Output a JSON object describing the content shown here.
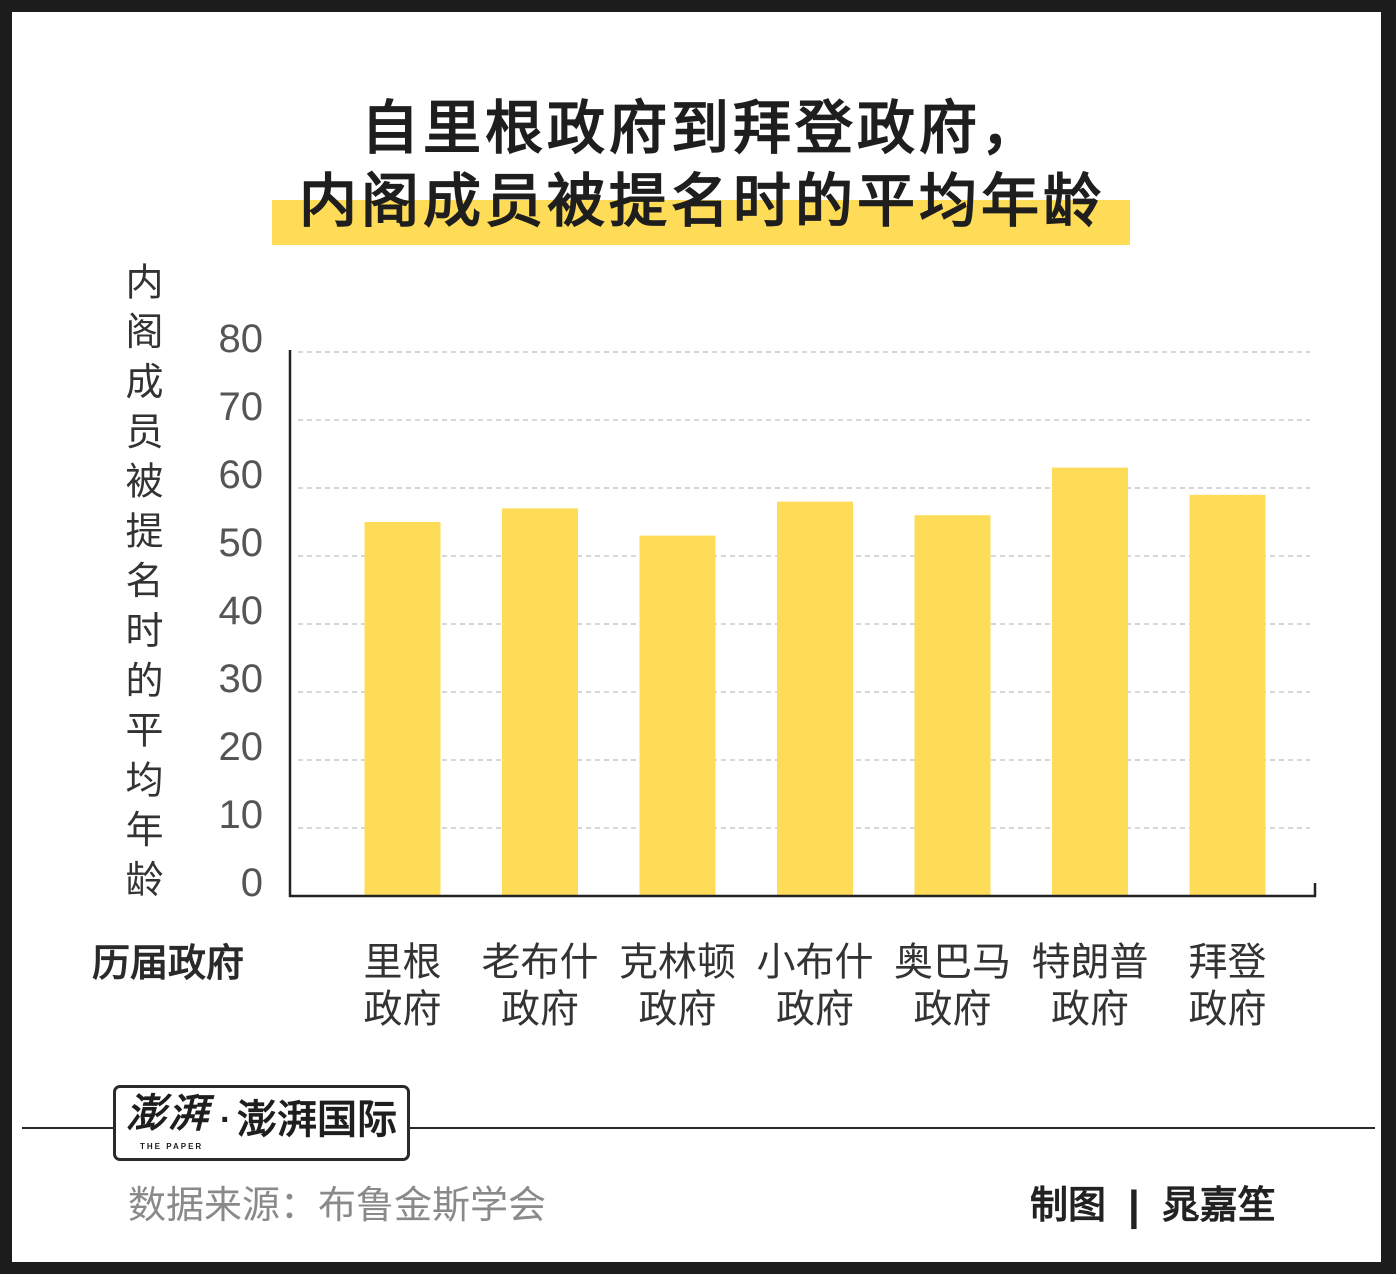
{
  "chart_data": {
    "type": "bar",
    "title": [
      "自里根政府到拜登政府，",
      "内阁成员被提名时的平均年龄"
    ],
    "xlabel": "历届政府",
    "ylabel": "内阁成员被提名时的平均年龄",
    "categories": [
      [
        "里根",
        "政府"
      ],
      [
        "老布什",
        "政府"
      ],
      [
        "克林顿",
        "政府"
      ],
      [
        "小布什",
        "政府"
      ],
      [
        "奥巴马",
        "政府"
      ],
      [
        "特朗普",
        "政府"
      ],
      [
        "拜登",
        "政府"
      ]
    ],
    "values": [
      55,
      57,
      53,
      58,
      56,
      63,
      59
    ],
    "ylim": [
      0,
      80
    ],
    "yticks": [
      0,
      10,
      20,
      30,
      40,
      50,
      60,
      70,
      80
    ],
    "grid": true
  },
  "logo": {
    "mark": "澎湃",
    "tagline": "THE PAPER",
    "dot": "·",
    "name": "澎湃国际"
  },
  "source": "数据来源：布鲁金斯学会",
  "credit": {
    "label": "制图",
    "separator": "|",
    "author": "晁嘉笙"
  },
  "colors": {
    "bar": "#FEDC57",
    "title_highlight": "#FEDC57",
    "frame": "#1c1c1c",
    "axis": "#222222",
    "grid": "#c8c8c8",
    "tick_text": "#555555",
    "category_text": "#333333"
  }
}
